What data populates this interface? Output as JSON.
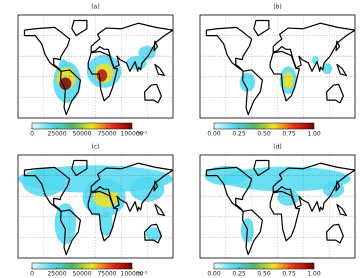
{
  "panels": [
    {
      "label": "(a)",
      "colorbar": {
        "lim": [
          0,
          100000
        ],
        "ticks": [
          0,
          25000,
          50000,
          75000,
          100000
        ],
        "unit": "m⁻²"
      }
    },
    {
      "label": "(b)",
      "colorbar": {
        "lim": [
          0,
          1
        ],
        "ticks": [
          {
            "value": 0,
            "label": "0.00"
          },
          {
            "value": 0.25,
            "label": "0.25"
          },
          {
            "value": 0.5,
            "label": "0.50"
          },
          {
            "value": 0.75,
            "label": "0.75"
          },
          {
            "value": 1,
            "label": "1.00"
          }
        ]
      }
    },
    {
      "label": "(c)",
      "colorbar": {
        "lim": [
          0,
          100000
        ],
        "ticks": [
          0,
          25000,
          50000,
          75000,
          100000
        ],
        "unit": "m⁻²"
      }
    },
    {
      "label": "(d)",
      "colorbar": {
        "lim": [
          0,
          1
        ],
        "ticks": [
          {
            "value": 0,
            "label": "0.00"
          },
          {
            "value": 0.25,
            "label": "0.25"
          },
          {
            "value": 0.5,
            "label": "0.50"
          },
          {
            "value": 0.75,
            "label": "0.75"
          },
          {
            "value": 1,
            "label": "1.00"
          }
        ]
      }
    }
  ]
}
